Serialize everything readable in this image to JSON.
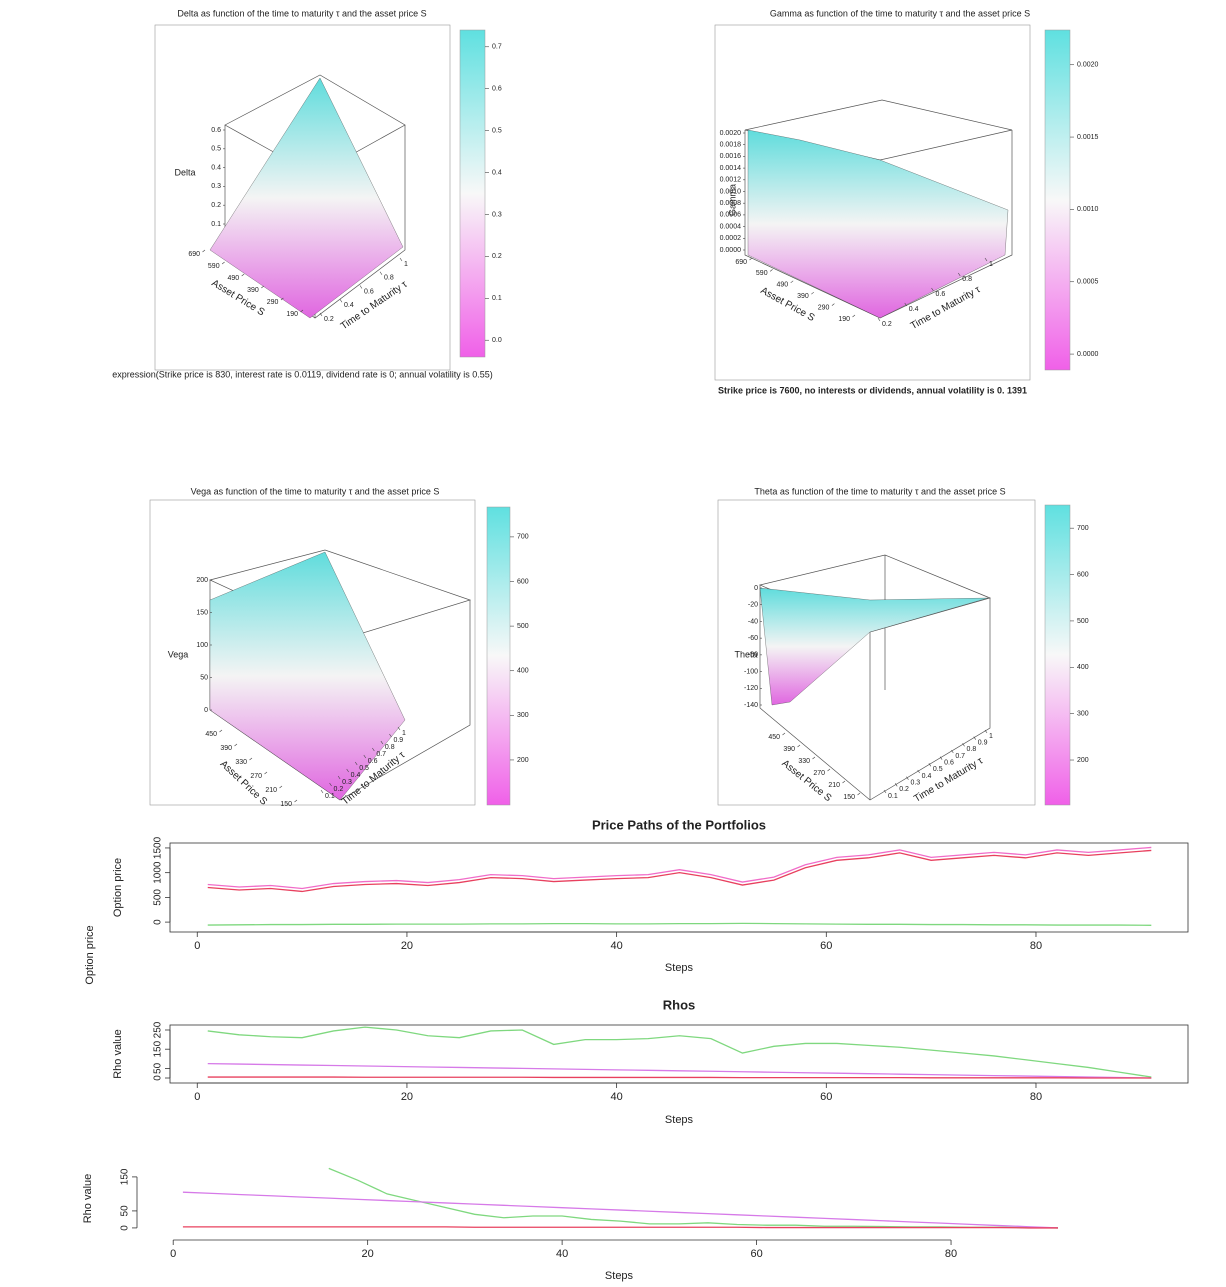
{
  "chart_data": [
    {
      "type": "surface3d",
      "title": "Delta as function of the time to maturity τ and the asset price S",
      "zlabel": "Delta",
      "xlabel": "Asset Price S",
      "ylabel": "Time to Maturity τ",
      "zlim": [
        0.1,
        0.6
      ],
      "zticks": [
        0.1,
        0.2,
        0.3,
        0.4,
        0.5,
        0.6
      ],
      "xlim": [
        690,
        190
      ],
      "xticks": [
        690,
        590,
        490,
        390,
        290,
        190
      ],
      "ylim": [
        0.2,
        1
      ],
      "yticks": [
        0.2,
        0.4,
        0.6,
        0.8,
        1
      ],
      "colorbar_lim": [
        -0.04,
        0.74
      ],
      "colorbar_ticks": [
        {
          "value": 0,
          "label": "0.0"
        },
        0.1,
        0.2,
        0.3,
        0.4,
        0.5,
        0.6,
        0.7
      ],
      "caption": "expression(Strike price is 830, interest rate is 0.0119, dividend rate is 0; annual volatility is 0.55)",
      "caption_bold": false
    },
    {
      "type": "surface3d",
      "title": "Gamma as function of the time to maturity τ and the asset price S",
      "zlabel": "Gamma",
      "xlabel": "Asset Price S",
      "ylabel": "Time to Maturity τ",
      "zlim": [
        0,
        0.002
      ],
      "zticks": [
        {
          "value": 0,
          "label": "0.0000"
        },
        {
          "value": 0.0002,
          "label": "0.0002"
        },
        {
          "value": 0.0004,
          "label": "0.0004"
        },
        {
          "value": 0.0006,
          "label": "0.0006"
        },
        {
          "value": 0.0008,
          "label": "0.0008"
        },
        {
          "value": 0.001,
          "label": "0.0010"
        },
        {
          "value": 0.0012,
          "label": "0.0012"
        },
        {
          "value": 0.0014,
          "label": "0.0014"
        },
        {
          "value": 0.0016,
          "label": "0.0016"
        },
        {
          "value": 0.0018,
          "label": "0.0018"
        },
        {
          "value": 0.002,
          "label": "0.0020"
        }
      ],
      "xlim": [
        690,
        190
      ],
      "xticks": [
        690,
        590,
        490,
        390,
        290,
        190
      ],
      "ylim": [
        0.2,
        1
      ],
      "yticks": [
        0.2,
        0.4,
        0.6,
        0.8,
        1
      ],
      "colorbar_lim": [
        -0.00011,
        0.00224
      ],
      "colorbar_ticks": [
        {
          "value": 0,
          "label": "0.0000"
        },
        {
          "value": 0.0005,
          "label": "0.0005"
        },
        {
          "value": 0.001,
          "label": "0.0010"
        },
        {
          "value": 0.0015,
          "label": "0.0015"
        },
        {
          "value": 0.002,
          "label": "0.0020"
        }
      ],
      "caption": "Strike price is 7600, no interests or dividends, annual volatility is 0. 1391",
      "caption_bold": true
    },
    {
      "type": "surface3d",
      "title": "Vega as function of the time to maturity τ and the asset price S",
      "zlabel": "Vega",
      "xlabel": "Asset Price S",
      "ylabel": "Time to Maturity τ",
      "zlim": [
        0,
        200
      ],
      "zticks": [
        0,
        50,
        100,
        150,
        200
      ],
      "xlim": [
        450,
        150
      ],
      "xticks": [
        450,
        390,
        330,
        270,
        210,
        150
      ],
      "ylim": [
        0.1,
        1
      ],
      "yticks": [
        0.1,
        0.2,
        0.3,
        0.4,
        0.5,
        0.6,
        0.7,
        0.8,
        0.9,
        1
      ],
      "colorbar_lim": [
        99,
        767
      ],
      "colorbar_ticks": [
        200,
        300,
        400,
        500,
        600,
        700
      ]
    },
    {
      "type": "surface3d",
      "title": "Theta as function of the time to maturity τ and the asset price S",
      "zlabel": "Theta",
      "xlabel": "Asset Price S",
      "ylabel": "Time to Maturity τ",
      "zlim": [
        0,
        -140
      ],
      "zticks": [
        0,
        -20,
        -40,
        -60,
        -80,
        -100,
        -120,
        -140
      ],
      "xlim": [
        450,
        150
      ],
      "xticks": [
        450,
        390,
        330,
        270,
        210,
        150
      ],
      "ylim": [
        0.1,
        1
      ],
      "yticks": [
        0.1,
        0.2,
        0.3,
        0.4,
        0.5,
        0.6,
        0.7,
        0.8,
        0.9,
        1
      ],
      "colorbar_lim": [
        103,
        750
      ],
      "colorbar_ticks": [
        200,
        300,
        400,
        500,
        600,
        700
      ]
    },
    {
      "type": "line",
      "title": "Price Paths of the Portfolios",
      "xlabel": "Steps",
      "ylabel": "Option price",
      "annotation": "Option price",
      "frame": true,
      "x": [
        1,
        4,
        7,
        10,
        13,
        16,
        19,
        22,
        25,
        28,
        31,
        34,
        37,
        40,
        43,
        46,
        49,
        52,
        55,
        58,
        61,
        64,
        67,
        70,
        73,
        76,
        79,
        82,
        85,
        88,
        91
      ],
      "xlim": [
        -2.6,
        94.5
      ],
      "xticks": [
        0,
        20,
        40,
        60,
        80
      ],
      "ylim": [
        -200,
        1600
      ],
      "yticks": [
        0,
        500,
        1000,
        1500
      ],
      "series": [
        {
          "color": "#f06cc8",
          "values": [
            760,
            710,
            740,
            680,
            780,
            820,
            840,
            800,
            860,
            960,
            940,
            880,
            910,
            940,
            960,
            1060,
            960,
            810,
            910,
            1160,
            1310,
            1360,
            1460,
            1310,
            1360,
            1410,
            1360,
            1460,
            1410,
            1460,
            1510
          ]
        },
        {
          "color": "#e8405e",
          "values": [
            700,
            650,
            680,
            620,
            720,
            760,
            780,
            740,
            800,
            900,
            880,
            820,
            850,
            880,
            900,
            1000,
            900,
            750,
            850,
            1100,
            1250,
            1300,
            1400,
            1250,
            1300,
            1350,
            1300,
            1400,
            1350,
            1400,
            1450
          ]
        },
        {
          "color": "#7fd87f",
          "values": [
            -60,
            -55,
            -50,
            -50,
            -45,
            -45,
            -40,
            -40,
            -40,
            -35,
            -35,
            -30,
            -30,
            -35,
            -35,
            -30,
            -30,
            -25,
            -30,
            -35,
            -40,
            -45,
            -45,
            -50,
            -50,
            -55,
            -55,
            -60,
            -60,
            -60,
            -65
          ]
        }
      ]
    },
    {
      "type": "line",
      "title": "Rhos",
      "xlabel": "Steps",
      "ylabel": "Rho value",
      "frame": true,
      "x": [
        1,
        4,
        7,
        10,
        13,
        16,
        19,
        22,
        25,
        28,
        31,
        34,
        37,
        40,
        43,
        46,
        49,
        52,
        55,
        58,
        61,
        64,
        67,
        70,
        73,
        76,
        79,
        82,
        85,
        88,
        91
      ],
      "xlim": [
        -2.6,
        94.5
      ],
      "xticks": [
        0,
        20,
        40,
        60,
        80
      ],
      "ylim": [
        -26,
        276
      ],
      "yticks": [
        0,
        50,
        150,
        250
      ],
      "series": [
        {
          "color": "#7fd87f",
          "values": [
            245,
            225,
            215,
            210,
            245,
            265,
            250,
            220,
            210,
            245,
            250,
            175,
            200,
            200,
            205,
            220,
            205,
            130,
            165,
            180,
            180,
            170,
            160,
            145,
            130,
            115,
            95,
            75,
            55,
            30,
            5
          ]
        },
        {
          "color": "#d67ae8",
          "values": [
            75,
            72.5,
            70,
            67.5,
            65,
            62.5,
            60,
            57.5,
            55,
            52.5,
            50,
            47.5,
            45,
            42.5,
            40,
            37.5,
            35,
            32.5,
            30,
            27.5,
            25,
            22.5,
            20,
            17.5,
            15,
            12.5,
            10,
            7.5,
            5,
            2.5,
            0
          ]
        },
        {
          "color": "#e8405e",
          "values": [
            5,
            5,
            5,
            5,
            5,
            4,
            4,
            4,
            4,
            4,
            4,
            3,
            3,
            3,
            3,
            3,
            3,
            2,
            2,
            2,
            2,
            2,
            2,
            1,
            1,
            1,
            1,
            1,
            0,
            0,
            0
          ]
        }
      ]
    },
    {
      "type": "line",
      "xlabel": "Steps",
      "ylabel": "Rho value",
      "frame": false,
      "x": [
        1,
        4,
        7,
        10,
        13,
        16,
        19,
        22,
        25,
        28,
        31,
        34,
        37,
        40,
        43,
        46,
        49,
        52,
        55,
        58,
        61,
        64,
        67,
        70,
        73,
        76,
        79,
        82,
        85,
        88,
        91
      ],
      "xlim": [
        -2.9,
        94.6
      ],
      "xticks": [
        0,
        20,
        40,
        60,
        80
      ],
      "ylim": [
        -12,
        185
      ],
      "yticks": [
        0,
        50,
        150
      ],
      "series": [
        {
          "color": "#7fd87f",
          "values": [
            null,
            null,
            null,
            null,
            null,
            175,
            140,
            100,
            80,
            60,
            40,
            30,
            35,
            35,
            25,
            20,
            12,
            12,
            15,
            10,
            8,
            8,
            5,
            5,
            4,
            3,
            3,
            2,
            2,
            1,
            0
          ]
        },
        {
          "color": "#d67ae8",
          "values": [
            105,
            101.5,
            98,
            94.5,
            91,
            87.5,
            84,
            80.5,
            77,
            73.5,
            70,
            66.5,
            63,
            59.5,
            56,
            52.5,
            49,
            45.5,
            42,
            38.5,
            35,
            31.5,
            28,
            24.5,
            21,
            17.5,
            14,
            10.5,
            7,
            3.5,
            0
          ]
        },
        {
          "color": "#e8405e",
          "values": [
            3,
            3,
            3,
            3,
            3,
            3,
            3,
            3,
            3,
            3,
            2,
            2,
            2,
            2,
            2,
            2,
            2,
            2,
            2,
            2,
            1,
            1,
            1,
            1,
            1,
            1,
            1,
            1,
            1,
            0,
            0
          ]
        }
      ]
    }
  ]
}
